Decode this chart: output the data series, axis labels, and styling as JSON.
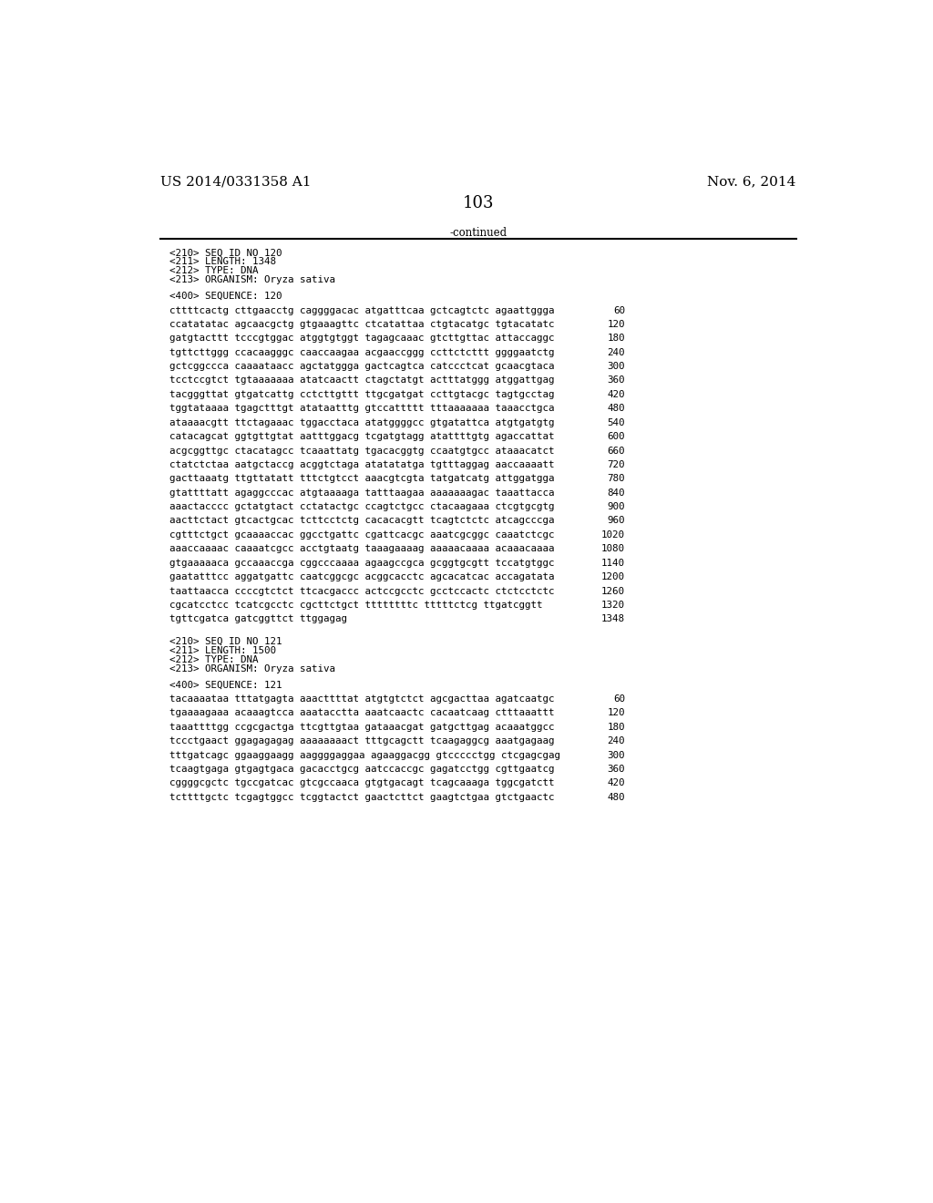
{
  "header_left": "US 2014/0331358 A1",
  "header_right": "Nov. 6, 2014",
  "page_number": "103",
  "continued": "-continued",
  "background_color": "#ffffff",
  "text_color": "#000000",
  "header_fontsize": 11.0,
  "page_num_fontsize": 13.0,
  "mono_fontsize": 7.8,
  "sections": [
    {
      "type": "header_block",
      "lines": [
        "<210> SEQ ID NO 120",
        "<211> LENGTH: 1348",
        "<212> TYPE: DNA",
        "<213> ORGANISM: Oryza sativa"
      ]
    },
    {
      "type": "sequence_header",
      "line": "<400> SEQUENCE: 120"
    },
    {
      "type": "sequence_data",
      "rows": [
        [
          "cttttcactg cttgaacctg caggggacac atgatttcaa gctcagtctc agaattggga",
          "60"
        ],
        [
          "ccatatatac agcaacgctg gtgaaagttc ctcatattaa ctgtacatgc tgtacatatc",
          "120"
        ],
        [
          "gatgtacttt tcccgtggac atggtgtggt tagagcaaac gtcttgttac attaccaggc",
          "180"
        ],
        [
          "tgttcttggg ccacaagggc caaccaagaa acgaaccggg ccttctcttt ggggaatctg",
          "240"
        ],
        [
          "gctcggccca caaaataacc agctatggga gactcagtca catccctcat gcaacgtaca",
          "300"
        ],
        [
          "tcctccgtct tgtaaaaaaa atatcaactt ctagctatgt actttatggg atggattgag",
          "360"
        ],
        [
          "tacgggttat gtgatcattg cctcttgttt ttgcgatgat ccttgtacgc tagtgcctag",
          "420"
        ],
        [
          "tggtataaaa tgagctttgt atataatttg gtccattttt tttaaaaaaa taaacctgca",
          "480"
        ],
        [
          "ataaaacgtt ttctagaaac tggacctaca atatggggcc gtgatattca atgtgatgtg",
          "540"
        ],
        [
          "catacagcat ggtgttgtat aatttggacg tcgatgtagg atattttgtg agaccattat",
          "600"
        ],
        [
          "acgcggttgc ctacatagcc tcaaattatg tgacacggtg ccaatgtgcc ataaacatct",
          "660"
        ],
        [
          "ctatctctaa aatgctaccg acggtctaga atatatatga tgtttaggag aaccaaaatt",
          "720"
        ],
        [
          "gacttaaatg ttgttatatt tttctgtcct aaacgtcgta tatgatcatg attggatgga",
          "780"
        ],
        [
          "gtattttatt agaggcccac atgtaaaaga tatttaagaa aaaaaaagac taaattacca",
          "840"
        ],
        [
          "aaactacccc gctatgtact cctatactgc ccagtctgcc ctacaagaaa ctcgtgcgtg",
          "900"
        ],
        [
          "aacttctact gtcactgcac tcttcctctg cacacacgtt tcagtctctc atcagcccga",
          "960"
        ],
        [
          "cgtttctgct gcaaaaccac ggcctgattc cgattcacgc aaatcgcggc caaatctcgc",
          "1020"
        ],
        [
          "aaaccaaaac caaaatcgcc acctgtaatg taaagaaaag aaaaacaaaa acaaacaaaa",
          "1080"
        ],
        [
          "gtgaaaaaca gccaaaccga cggcccaaaa agaagccgca gcggtgcgtt tccatgtggc",
          "1140"
        ],
        [
          "gaatatttcc aggatgattc caatcggcgc acggcacctc agcacatcac accagatata",
          "1200"
        ],
        [
          "taattaacca ccccgtctct ttcacgaccc actccgcctc gcctccactc ctctcctctc",
          "1260"
        ],
        [
          "cgcatcctcc tcatcgcctc cgcttctgct ttttttttc tttttctcg ttgatcggtt",
          "1320"
        ],
        [
          "tgttcgatca gatcggttct ttggagag",
          "1348"
        ]
      ]
    },
    {
      "type": "header_block",
      "lines": [
        "<210> SEQ ID NO 121",
        "<211> LENGTH: 1500",
        "<212> TYPE: DNA",
        "<213> ORGANISM: Oryza sativa"
      ]
    },
    {
      "type": "sequence_header",
      "line": "<400> SEQUENCE: 121"
    },
    {
      "type": "sequence_data",
      "rows": [
        [
          "tacaaaataa tttatgagta aaacttttat atgtgtctct agcgacttaa agatcaatgc",
          "60"
        ],
        [
          "tgaaaagaaa acaaagtcca aaatacctta aaatcaactc cacaatcaag ctttaaattt",
          "120"
        ],
        [
          "taaattttgg ccgcgactga ttcgttgtaa gataaacgat gatgcttgag acaaatggcc",
          "180"
        ],
        [
          "tccctgaact ggagagagag aaaaaaaact tttgcagctt tcaagaggcg aaatgagaag",
          "240"
        ],
        [
          "tttgatcagc ggaaggaagg aaggggaggaa agaaggacgg gtccccctgg ctcgagcgag",
          "300"
        ],
        [
          "tcaagtgaga gtgagtgaca gacacctgcg aatccaccgc gagatcctgg cgttgaatcg",
          "360"
        ],
        [
          "cggggcgctc tgccgatcac gtcgccaaca gtgtgacagt tcagcaaaga tggcgatctt",
          "420"
        ],
        [
          "tcttttgctc tcgagtggcc tcggtactct gaactcttct gaagtctgaa gtctgaactc",
          "480"
        ]
      ]
    }
  ]
}
